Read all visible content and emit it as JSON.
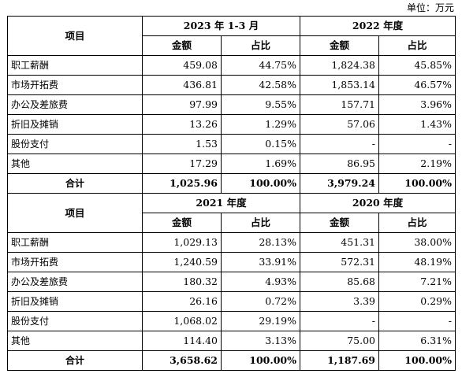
{
  "unit_label": "单位：万元",
  "item_header": "项目",
  "amount_header": "金额",
  "ratio_header": "占比",
  "total_label": "合计",
  "sections": [
    {
      "period_a": "2023 年 1-3 月",
      "period_b": "2022 年度",
      "rows": [
        {
          "item": "职工薪酬",
          "a_amt": "459.08",
          "a_pct": "44.75%",
          "b_amt": "1,824.38",
          "b_pct": "45.85%"
        },
        {
          "item": "市场开拓费",
          "a_amt": "436.81",
          "a_pct": "42.58%",
          "b_amt": "1,853.14",
          "b_pct": "46.57%"
        },
        {
          "item": "办公及差旅费",
          "a_amt": "97.99",
          "a_pct": "9.55%",
          "b_amt": "157.71",
          "b_pct": "3.96%"
        },
        {
          "item": "折旧及摊销",
          "a_amt": "13.26",
          "a_pct": "1.29%",
          "b_amt": "57.06",
          "b_pct": "1.43%"
        },
        {
          "item": "股份支付",
          "a_amt": "1.53",
          "a_pct": "0.15%",
          "b_amt": "-",
          "b_pct": "-"
        },
        {
          "item": "其他",
          "a_amt": "17.29",
          "a_pct": "1.69%",
          "b_amt": "86.95",
          "b_pct": "2.19%"
        }
      ],
      "total": {
        "a_amt": "1,025.96",
        "a_pct": "100.00%",
        "b_amt": "3,979.24",
        "b_pct": "100.00%"
      }
    },
    {
      "period_a": "2021 年度",
      "period_b": "2020 年度",
      "rows": [
        {
          "item": "职工薪酬",
          "a_amt": "1,029.13",
          "a_pct": "28.13%",
          "b_amt": "451.31",
          "b_pct": "38.00%"
        },
        {
          "item": "市场开拓费",
          "a_amt": "1,240.59",
          "a_pct": "33.91%",
          "b_amt": "572.31",
          "b_pct": "48.19%"
        },
        {
          "item": "办公及差旅费",
          "a_amt": "180.32",
          "a_pct": "4.93%",
          "b_amt": "85.68",
          "b_pct": "7.21%"
        },
        {
          "item": "折旧及摊销",
          "a_amt": "26.16",
          "a_pct": "0.72%",
          "b_amt": "3.39",
          "b_pct": "0.29%"
        },
        {
          "item": "股份支付",
          "a_amt": "1,068.02",
          "a_pct": "29.19%",
          "b_amt": "-",
          "b_pct": "-"
        },
        {
          "item": "其他",
          "a_amt": "114.40",
          "a_pct": "3.13%",
          "b_amt": "75.00",
          "b_pct": "6.31%"
        }
      ],
      "total": {
        "a_amt": "3,658.62",
        "a_pct": "100.00%",
        "b_amt": "1,187.69",
        "b_pct": "100.00%"
      }
    }
  ]
}
